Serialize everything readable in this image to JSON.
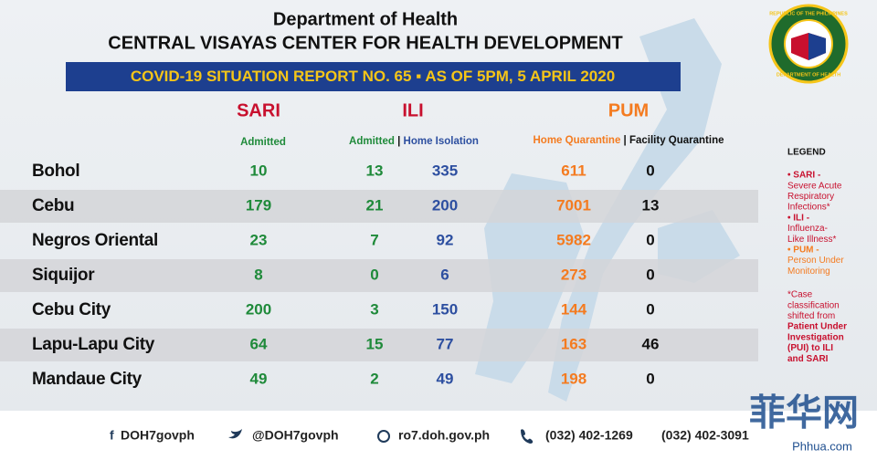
{
  "header": {
    "org": "Department of Health",
    "center": "CENTRAL VISAYAS CENTER FOR HEALTH DEVELOPMENT",
    "report": "COVID-19 SITUATION REPORT NO. 65",
    "sep": "▪",
    "date": "AS OF 5PM, 5 APRIL 2020"
  },
  "seal": {
    "top": "REPUBLIC OF THE PHILIPPINES",
    "bottom": "DEPARTMENT OF HEALTH"
  },
  "groups": [
    "SARI",
    "ILI",
    "PUM"
  ],
  "subheaders": {
    "sari": "Admitted",
    "ili_admitted": "Admitted",
    "ili_home": "Home Isolation",
    "pum_home": "Home Quarantine",
    "pum_facility": "Facility Quarantine",
    "divider": "|"
  },
  "table": {
    "rows": [
      [
        "Bohol",
        10,
        13,
        335,
        611,
        0
      ],
      [
        "Cebu",
        179,
        21,
        200,
        7001,
        13
      ],
      [
        "Negros Oriental",
        23,
        7,
        92,
        5982,
        0
      ],
      [
        "Siquijor",
        8,
        0,
        6,
        273,
        0
      ],
      [
        "Cebu City",
        200,
        3,
        150,
        144,
        0
      ],
      [
        "Lapu-Lapu City",
        64,
        15,
        77,
        163,
        46
      ],
      [
        "Mandaue City",
        49,
        2,
        49,
        198,
        0
      ]
    ]
  },
  "legend": {
    "title": "LEGEND",
    "lines": [
      "• SARI -",
      "Severe Acute",
      "Respiratory",
      "Infections*",
      "• ILI -",
      "Influenza-",
      "Like Illness*",
      "• PUM -",
      "Person Under",
      "Monitoring",
      "*Case",
      "classification",
      "shifted from",
      "Patient Under",
      "Investigation",
      "(PUI) to ILI",
      "and SARI"
    ]
  },
  "footer": {
    "facebook": "DOH7govph",
    "twitter": "@DOH7govph",
    "web": "ro7.doh.gov.ph",
    "phone1": "(032) 402-1269",
    "phone2": "(032) 402-3091"
  },
  "watermark": {
    "cn": "菲华网",
    "url": "Phhua.com"
  }
}
